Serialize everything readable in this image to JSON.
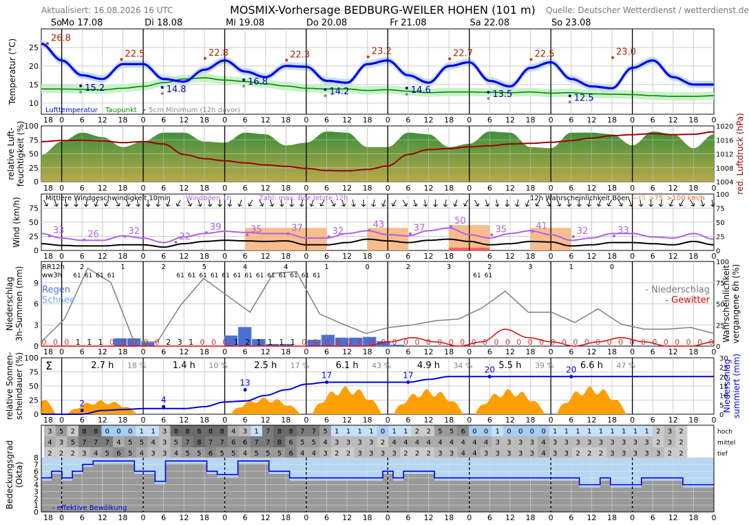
{
  "header": {
    "updated": "Aktualisiert: 16.08.2026 16 UTC",
    "title": "MOSMIX-Vorhersage BEDBURG-WEILER HOHEN (101 m)",
    "source": "Quelle: Deutscher Wetterdienst / wetterdienst.de"
  },
  "colors": {
    "temp": "#0000ee",
    "temp_band": "#c6dcf2",
    "dew": "#008800",
    "dew_band": "#c8f2c8",
    "humidity_top": "#3f8f3a",
    "humidity_bottom": "#b7a94c",
    "pressure": "#990000",
    "gust": "#b060e0",
    "wind_fill": "#f7b27a",
    "rain": "#4a70d0",
    "precip_prob": "#808080",
    "thunder": "#dd0000",
    "sun": "#ff9f00",
    "cloud_low": "#999999",
    "cloud_effective": "#0000dd",
    "cloud_sky": "#b6d6f2"
  },
  "chart_data": [
    {
      "type": "line",
      "panel": "temperature",
      "ylabel": "Temperatur (°C)",
      "ylim": [
        7,
        30
      ],
      "yticks": [
        10,
        15,
        20,
        25
      ],
      "x_hours_start": 18,
      "x_hours_step": 6,
      "day_labels": [
        "So",
        "Mo 17.08",
        "Di 18.08",
        "Mi 19.08",
        "Do 20.08",
        "Fr 21.08",
        "Sa 22.08",
        "So 23.08"
      ],
      "hour_labels": [
        "18",
        "0",
        "6",
        "12",
        "18",
        "0",
        "6",
        "12",
        "18",
        "0",
        "6",
        "12",
        "18",
        "0",
        "6",
        "12",
        "18",
        "0",
        "6",
        "12",
        "18",
        "0",
        "6",
        "12",
        "18",
        "0",
        "6",
        "12",
        "18",
        "0",
        "6",
        "12",
        "18",
        "0"
      ],
      "series": [
        {
          "name": "Lufttemperatur",
          "values": [
            26.0,
            21.5,
            17.5,
            16.5,
            20.5,
            20.5,
            16.5,
            15.8,
            19.0,
            21.5,
            18.5,
            17.0,
            20.0,
            19.8,
            16.0,
            15.5,
            20.5,
            21.5,
            17.5,
            15.5,
            20.0,
            21.0,
            16.0,
            14.5,
            19.5,
            21.0,
            16.5,
            14.5,
            14.0,
            19.5,
            21.5,
            17.0,
            15.0,
            15.0
          ]
        },
        {
          "name": "Taupunkt",
          "values": [
            13.8,
            13.8,
            13.7,
            13.6,
            14.0,
            14.5,
            15.5,
            16.5,
            16.8,
            16.2,
            15.8,
            15.2,
            14.6,
            14.0,
            13.8,
            13.8,
            13.4,
            13.6,
            13.2,
            12.8,
            13.0,
            13.0,
            12.9,
            12.8,
            13.0,
            12.7,
            12.8,
            12.5,
            12.4,
            12.3,
            12.0,
            11.8,
            11.8,
            12.0
          ]
        }
      ],
      "max_labels": [
        "26.8",
        "22.5",
        "22.8",
        "22.3",
        "23.2",
        "22.7",
        "22.5",
        "23.0"
      ],
      "min_labels": [
        "15.2",
        "14.8",
        "16.8",
        "14.2",
        "14.6",
        "13.5",
        "12.5"
      ],
      "legend": [
        "Lufttemperatur",
        "Taupunkt",
        "5cm Minimum (12h davor)"
      ]
    },
    {
      "type": "area",
      "panel": "humidity",
      "ylabel": "relative Luft- feuchtigkeit (%)",
      "y2label": "red. Luftdruck (hPa)",
      "ylim": [
        0,
        100
      ],
      "yticks": [
        0,
        25,
        50,
        75,
        100
      ],
      "y2lim": [
        1004,
        1020
      ],
      "y2ticks": [
        1004,
        1008,
        1012,
        1016,
        1020
      ],
      "series": [
        {
          "name": "Luftfeuchtigkeit",
          "values": [
            48,
            72,
            88,
            80,
            62,
            72,
            88,
            88,
            72,
            70,
            88,
            85,
            65,
            70,
            90,
            88,
            62,
            62,
            88,
            85,
            62,
            68,
            90,
            88,
            62,
            60,
            88,
            88,
            85,
            65,
            90,
            85,
            60,
            85
          ]
        },
        {
          "name": "Luftdruck",
          "values": [
            1015.5,
            1015.8,
            1015.9,
            1015.7,
            1015.2,
            1015.5,
            1014.8,
            1011.8,
            1010.6,
            1010.0,
            1009.4,
            1008.8,
            1008.4,
            1007.8,
            1007.2,
            1007.1,
            1007.5,
            1008.5,
            1011.8,
            1013.2,
            1013.5,
            1014.0,
            1014.3,
            1014.8,
            1015.0,
            1015.3,
            1015.8,
            1016.5,
            1017.2,
            1017.5,
            1017.8,
            1017.5,
            1017.6,
            1018.3
          ]
        }
      ]
    },
    {
      "type": "line",
      "panel": "wind",
      "ylabel": "Wind (km/h)",
      "ylim": [
        0,
        100
      ],
      "yticks": [
        0,
        25,
        50,
        75
      ],
      "y2ticks": [
        0,
        25,
        50,
        75,
        100
      ],
      "legend": [
        "Mittlere Windgeschwindigkeit 10min",
        "Windböen 1h",
        "Zahl: max. Böe letzte 12h",
        "12h Wahrscheinlichkeit Böen",
        ">45",
        ">75",
        ">100 km/h"
      ],
      "series": [
        {
          "name": "Windböen 1h",
          "values": [
            30,
            22,
            18,
            18,
            26,
            22,
            14,
            24,
            30,
            34,
            32,
            30,
            30,
            22,
            22,
            30,
            35,
            28,
            26,
            35,
            40,
            28,
            22,
            30,
            35,
            28,
            18,
            22,
            30,
            30,
            24,
            22,
            30,
            20
          ]
        },
        {
          "name": "Mittlere Windgeschwindigkeit 10min",
          "values": [
            12,
            9,
            8,
            8,
            10,
            10,
            6,
            12,
            16,
            18,
            17,
            16,
            17,
            10,
            10,
            14,
            20,
            17,
            14,
            18,
            20,
            16,
            10,
            12,
            16,
            15,
            8,
            10,
            14,
            14,
            12,
            10,
            16,
            10
          ]
        }
      ],
      "gust_max_labels": [
        "33",
        "26",
        "32",
        "22",
        "39",
        "35",
        "37",
        "32",
        "43",
        "37",
        "50",
        "35",
        "41",
        "32",
        "33"
      ],
      "gust_probability_45": [
        0,
        0,
        0,
        0,
        0,
        40,
        40,
        0,
        40,
        0,
        45,
        0,
        40,
        0,
        0,
        0,
        0
      ],
      "gust_probability_75": [
        0,
        0,
        0,
        0,
        0,
        0,
        0,
        0,
        0,
        0,
        5,
        0,
        0,
        0,
        0,
        0,
        0
      ]
    },
    {
      "type": "bar",
      "panel": "precipitation",
      "ylabel": "Niederschlag 3h-Summen (mm)",
      "y2label": "Wahrscheinlichkeit vergangene 6h (%)",
      "ylim": [
        0,
        12
      ],
      "yticks": [
        0,
        3,
        6,
        9
      ],
      "y2ticks": [
        0,
        25,
        50,
        75,
        100
      ],
      "row_labels": [
        "RR12h",
        "ww3h"
      ],
      "rr12h": [
        "2",
        "1",
        "2",
        "5",
        "4",
        "4",
        "1",
        "0",
        "2",
        "3",
        "2",
        "3",
        "1",
        "0"
      ],
      "ww3h_groups": [
        [
          "61",
          "61",
          "61",
          "61"
        ],
        [
          "61",
          "61",
          "61",
          "61",
          "61",
          "61",
          "61",
          "61",
          "61",
          "61",
          "61",
          "61",
          "61"
        ],
        [
          "61",
          "61"
        ]
      ],
      "legend": [
        "Regen",
        "Schnee",
        "- Niederschlag",
        "- Gewitter"
      ],
      "bar_labels": [
        "0",
        "0",
        "0",
        "1",
        "1",
        "1",
        "0",
        "0",
        "0",
        "0",
        "0",
        "2",
        "3",
        "1",
        "0",
        "0",
        "0",
        "1",
        "2",
        "1",
        "1",
        "1",
        "1",
        "0"
      ],
      "rain_mm": [
        0,
        0,
        0,
        1.1,
        1.1,
        0.5,
        0,
        0,
        0,
        0,
        0,
        1.5,
        2.7,
        1.0,
        0.3,
        0.3,
        0,
        0.9,
        1.6,
        1.2,
        1.2,
        1.3,
        0.7,
        0.2
      ],
      "precip_probability": [
        5,
        32,
        92,
        75,
        5,
        5,
        48,
        80,
        60,
        40,
        86,
        88,
        38,
        26,
        15,
        22,
        25,
        30,
        32,
        45,
        65,
        40,
        40,
        28,
        44,
        26,
        20,
        20,
        22,
        15
      ],
      "thunder_probability": [
        0,
        0,
        0,
        0,
        0,
        0,
        0,
        0,
        0,
        0,
        0,
        0,
        0,
        0,
        0,
        5,
        10,
        5,
        0,
        5,
        20,
        10,
        5,
        0,
        5,
        10,
        5,
        0,
        0,
        5
      ]
    },
    {
      "type": "area",
      "panel": "sunshine",
      "ylabel": "relative Sonnen- scheindauer (%)",
      "y2label": "Niederschlag summiert (mm)",
      "ylim": [
        0,
        100
      ],
      "yticks": [
        0,
        25,
        50,
        75,
        100
      ],
      "y2lim": [
        0,
        30
      ],
      "y2ticks": [
        0,
        5,
        10,
        15,
        20,
        25,
        30
      ],
      "sun_hours": [
        "2.7 h",
        "1.4 h",
        "2.5 h",
        "6.1 h",
        "4.9 h",
        "5.5 h",
        "6.6 h"
      ],
      "sun_pct": [
        "18 %",
        "10 %",
        "17 %",
        "43 %",
        "34 %",
        "39 %",
        "47 %"
      ],
      "accum_labels": [
        "2",
        "4",
        "13",
        "17",
        "17",
        "20",
        "20"
      ],
      "accum_mm": [
        0,
        0,
        0,
        2,
        2.5,
        3,
        3,
        3,
        4,
        6.5,
        7,
        10,
        13,
        16,
        17,
        17,
        17,
        17,
        17,
        18.5,
        20,
        20,
        20,
        20,
        20,
        20,
        20,
        20,
        20,
        20,
        20,
        20,
        20,
        20
      ]
    },
    {
      "type": "heatmap",
      "panel": "cloud_layers",
      "rows": [
        "hoch",
        "mittel",
        "tief"
      ],
      "hoch": [
        "3",
        "5",
        "2",
        "8",
        "8",
        "0",
        "0",
        "0",
        "1",
        "1",
        "3",
        "8",
        "8",
        "8",
        "8",
        "8",
        "4",
        "3",
        "1",
        "7",
        "8",
        "8",
        "7",
        "7",
        "5",
        "1",
        "1",
        "1",
        "1",
        "0",
        "1",
        "1",
        "2",
        "2",
        "5",
        "5",
        "6",
        "0",
        "0",
        "1",
        "0",
        "0",
        "0",
        "0",
        "1",
        "1",
        "1",
        "1",
        "1",
        "1",
        "1",
        "1",
        "1",
        "2",
        "3",
        "2"
      ],
      "mittel": [
        "4",
        "3",
        "5",
        "7",
        "7",
        "7",
        "4",
        "5",
        "5",
        "4",
        "3",
        "5",
        "7",
        "8",
        "7",
        "7",
        "6",
        "6",
        "7",
        "7",
        "8",
        "6",
        "5",
        "5",
        "4",
        "3",
        "3",
        "3",
        "3",
        "2",
        "4",
        "4",
        "4",
        "4",
        "4",
        "4",
        "4",
        "4",
        "4",
        "3",
        "3",
        "3",
        "3",
        "4",
        "3",
        "3",
        "3",
        "3",
        "3",
        "3",
        "3",
        "3",
        "3",
        "2",
        "3",
        "2"
      ],
      "tief": [
        "2",
        "2",
        "2",
        "3",
        "4",
        "5",
        "6",
        "5",
        "4",
        "3",
        "3",
        "4",
        "5",
        "5",
        "6",
        "5",
        "5",
        "4",
        "5",
        "5",
        "5",
        "6",
        "4",
        "4",
        "3",
        "2",
        "2",
        "3",
        "3",
        "3",
        "3",
        "2",
        "2",
        "2",
        "3",
        "3",
        "4",
        "4",
        "3",
        "3",
        "3",
        "3",
        "3",
        "4",
        "3",
        "3",
        "2",
        "2",
        "2",
        "3",
        "3",
        "3",
        "3",
        "3",
        "2",
        "2"
      ]
    },
    {
      "type": "area",
      "panel": "cloud_cover",
      "ylabel": "Bedeckungsgrad (Okta)",
      "ylim": [
        0,
        8
      ],
      "yticks": [
        0,
        1,
        2,
        3,
        4,
        5,
        6,
        7,
        8
      ],
      "legend": [
        "- effektive Bewölkung"
      ],
      "series": [
        {
          "name": "effektive Bewölkung",
          "values": [
            5.0,
            6.0,
            5.0,
            6.0,
            7.0,
            7.5,
            7.5,
            7.5,
            7.5,
            6.0,
            6.0,
            4.5,
            7.5,
            7.5,
            7.5,
            7.5,
            6.0,
            5.5,
            5.5,
            7.5,
            7.5,
            7.5,
            6.0,
            6.0,
            5.0,
            5.0,
            5.0,
            5.0,
            5.0,
            5.0,
            5.0,
            5.0,
            5.0,
            6.0,
            5.0,
            6.0,
            6.0,
            6.0,
            5.0,
            5.0,
            5.0,
            5.0,
            5.0,
            5.0,
            5.0,
            5.0,
            5.0,
            5.0,
            5.0,
            5.0,
            5.0,
            5.0,
            4.0,
            4.0,
            5.0,
            4.0,
            4.0,
            4.0,
            5.0,
            5.0,
            5.0,
            5.0,
            4.0,
            4.0,
            4.0
          ]
        }
      ]
    }
  ]
}
